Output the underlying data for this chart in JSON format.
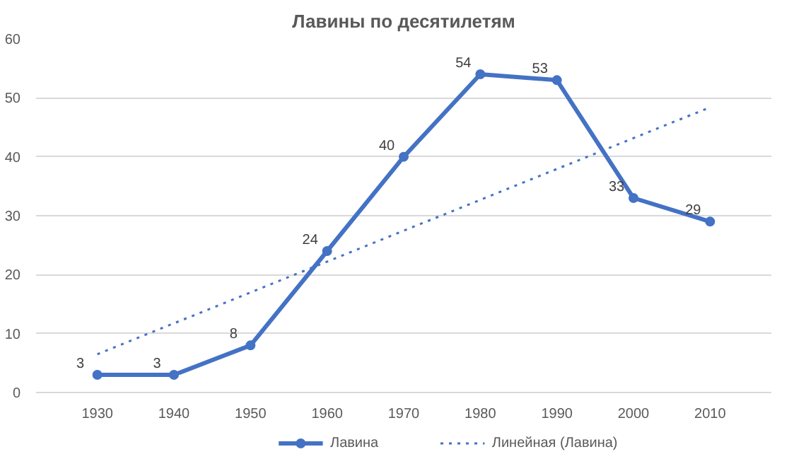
{
  "chart_data": {
    "type": "line",
    "title": "Лавины по десятилетям",
    "x": [
      1930,
      1940,
      1950,
      1960,
      1970,
      1980,
      1990,
      2000,
      2010
    ],
    "series": [
      {
        "name": "Лавина",
        "color": "#4472c4",
        "values": [
          3,
          3,
          8,
          24,
          40,
          54,
          53,
          33,
          29
        ],
        "marker": "circle",
        "line_style": "solid",
        "data_labels": true
      },
      {
        "name": "Линейная (Лавина)",
        "color": "#4472c4",
        "type": "line",
        "x": [
          1930,
          2010
        ],
        "values": [
          6.5,
          48.4
        ],
        "marker": "none",
        "line_style": "dotted"
      }
    ],
    "xlim": [
      1922,
      2018
    ],
    "xticks": [
      1930,
      1940,
      1950,
      1960,
      1970,
      1980,
      1990,
      2000,
      2010
    ],
    "ylim": [
      0,
      60
    ],
    "yticks": [
      0,
      10,
      20,
      30,
      40,
      50,
      60
    ],
    "grid": "y",
    "legend": "bottom"
  }
}
